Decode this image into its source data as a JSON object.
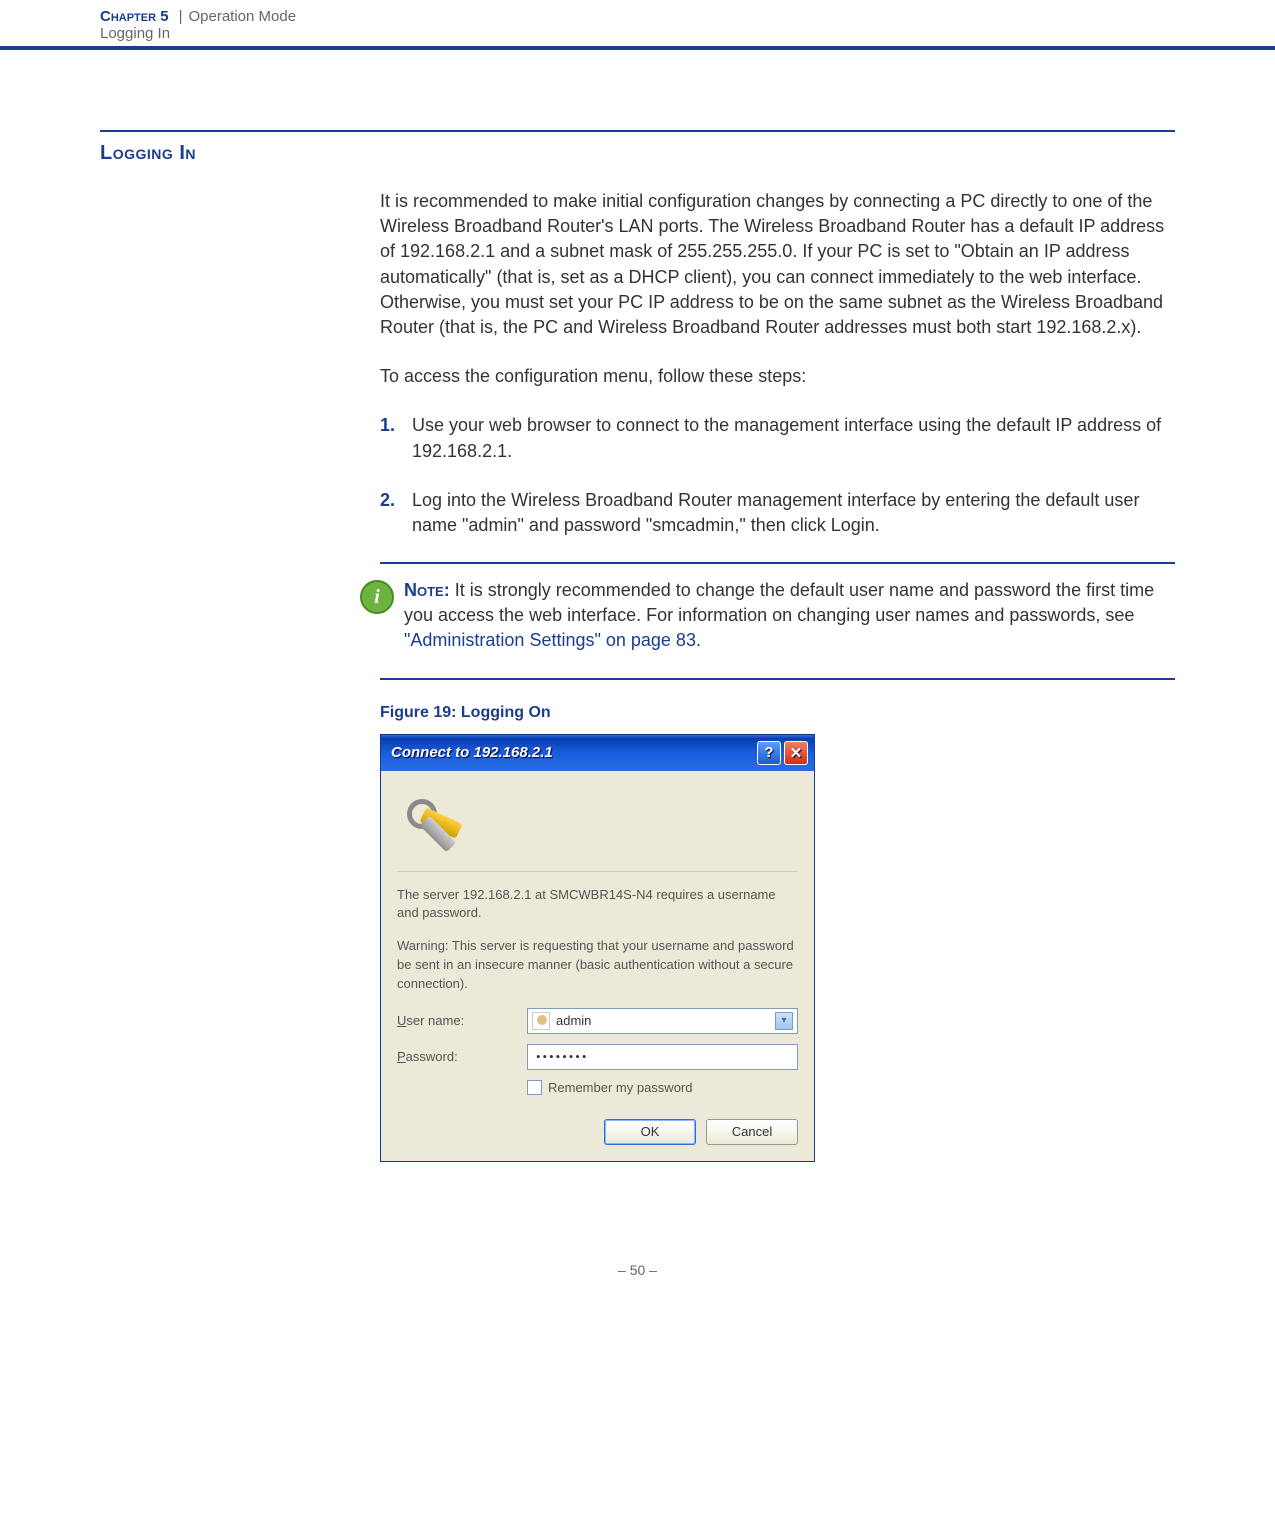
{
  "header": {
    "chapter_num": "Chapter 5",
    "separator": "|",
    "chapter_title": "Operation Mode",
    "subtitle": "Logging In"
  },
  "section": {
    "title": "Logging In"
  },
  "paragraphs": {
    "p1": "It is recommended to make initial configuration changes by connecting a PC directly to one of the Wireless Broadband Router's LAN ports. The Wireless Broadband Router has a default IP address of 192.168.2.1 and a subnet mask of 255.255.255.0. If your PC is set to \"Obtain an IP address automatically\" (that is, set as a DHCP client), you can connect immediately to the web interface. Otherwise, you must set your PC IP address to be on the same subnet as the Wireless Broadband Router (that is, the PC and Wireless Broadband Router addresses must both start 192.168.2.x).",
    "p2": "To access the configuration menu, follow these steps:"
  },
  "steps": [
    {
      "num": "1.",
      "text": "Use your web browser to connect to the management interface using the default IP address of 192.168.2.1."
    },
    {
      "num": "2.",
      "text": "Log into the Wireless Broadband Router management interface by entering the default user name \"admin\" and password \"smcadmin,\" then click Login."
    }
  ],
  "note": {
    "label": "Note:",
    "text_before": " It is strongly recommended to change the default user name and password the first time you access the web interface. For information on changing user names and passwords, see ",
    "link": "\"Administration Settings\" on page 83",
    "text_after": "."
  },
  "figure": {
    "caption": "Figure 19:  Logging On"
  },
  "dialog": {
    "title": "Connect to 192.168.2.1",
    "help_symbol": "?",
    "close_symbol": "✕",
    "msg1": "The server 192.168.2.1 at SMCWBR14S-N4 requires a username and password.",
    "msg2": "Warning: This server is requesting that your username and password be sent in an insecure manner (basic authentication without a secure connection).",
    "username_label_u": "U",
    "username_label_rest": "ser name:",
    "username_value": "admin",
    "password_label_p": "P",
    "password_label_rest": "assword:",
    "password_value": "••••••••",
    "remember_r": "R",
    "remember_rest": "emember my password",
    "ok_label": "OK",
    "cancel_label": "Cancel",
    "combo_arrow": "▾"
  },
  "footer": {
    "page_num": "–  50  –"
  },
  "info_icon_symbol": "i"
}
